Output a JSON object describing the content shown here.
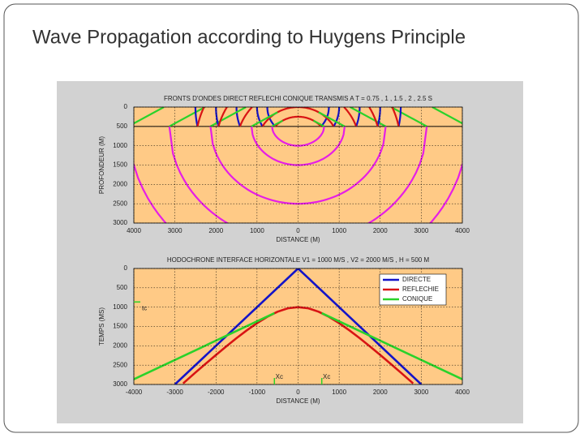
{
  "title": "Wave Propagation according to Huygens Principle",
  "chart_data": [
    {
      "type": "wavefront",
      "title": "FRONTS D'ONDES DIRECT REFLECHI CONIQUE TRANSMIS A T = 0.75 , 1 , 1.5 , 2 , 2.5 S",
      "xlabel": "DISTANCE (M)",
      "ylabel": "PROFONDEUR (M)",
      "times": [
        0.75,
        1,
        1.5,
        2,
        2.5
      ],
      "v1": 1000,
      "v2": 2000,
      "h": 500,
      "colors": {
        "direct": "#1414c8",
        "reflected": "#d81414",
        "conical": "#2ad22a",
        "transmitted": "#e61ee6"
      },
      "xlim": [
        -4000,
        4000
      ],
      "xticks": [
        {
          "value": -4000,
          "label": "4000"
        },
        {
          "value": -3000,
          "label": "3000"
        },
        {
          "value": -2000,
          "label": "2000"
        },
        {
          "value": -1000,
          "label": "1000"
        },
        0,
        1000,
        2000,
        3000,
        4000
      ],
      "ylim": [
        0,
        3000
      ],
      "y_reversed": true,
      "yticks": [
        0,
        500,
        1000,
        1500,
        2000,
        2500,
        3000
      ],
      "grid": true
    },
    {
      "type": "line",
      "title": "HODOCHRONE INTERFACE HORIZONTALE V1 = 1000 M/S , V2 = 2000 M/S , H = 500 M",
      "xlabel": "DISTANCE (M)",
      "ylabel": "TEMPS (MS)",
      "series": [
        {
          "name": "DIRECTE",
          "color": "#1414c8",
          "x": [
            -3000,
            0,
            3000
          ],
          "values": [
            3000,
            0,
            3000
          ]
        },
        {
          "name": "REFLECHIE",
          "color": "#d81414",
          "x": [
            -2800,
            -2500,
            -2250,
            -2000,
            -1750,
            -1500,
            -1250,
            -1000,
            -750,
            -500,
            -250,
            0,
            250,
            500,
            750,
            1000,
            1250,
            1500,
            1750,
            2000,
            2250,
            2500,
            2800
          ],
          "values": [
            2973.2,
            2692.6,
            2462.2,
            2236.1,
            2015.6,
            1802.8,
            1600.8,
            1414.2,
            1250,
            1118,
            1030.8,
            1000,
            1030.8,
            1118,
            1250,
            1414.2,
            1600.8,
            1802.8,
            2015.6,
            2236.1,
            2462.2,
            2692.6,
            2973.2
          ]
        },
        {
          "name": "CONIQUE",
          "color": "#2ad22a",
          "x": [
            -4000,
            -577,
            0,
            577,
            4000
          ],
          "values": [
            2866,
            1155,
            null,
            1155,
            2866
          ]
        }
      ],
      "annotations": [
        {
          "text": "tc",
          "y": 866
        },
        {
          "text": "Xc",
          "x": -577
        },
        {
          "text": "Xc",
          "x": 577
        }
      ],
      "xlim": [
        -4000,
        4000
      ],
      "xticks": [
        -4000,
        -3000,
        -2000,
        -1000,
        0,
        1000,
        2000,
        3000,
        4000
      ],
      "ylim": [
        0,
        3000
      ],
      "y_reversed": true,
      "yticks": [
        0,
        500,
        1000,
        1500,
        2000,
        2500,
        3000
      ],
      "grid": true,
      "legend": "top-right"
    }
  ]
}
